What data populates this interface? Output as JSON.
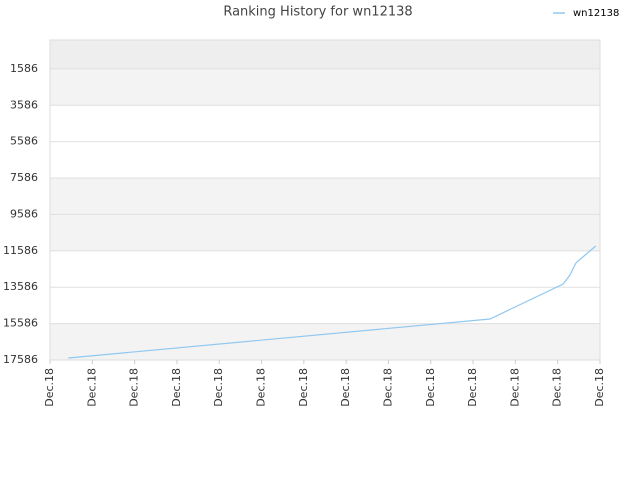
{
  "chart_data": {
    "type": "line",
    "title": "Ranking History for wn12138",
    "x": [
      0.43,
      10.4,
      12.13,
      12.29,
      12.43,
      12.65,
      12.9
    ],
    "series": [
      {
        "name": "wn12138",
        "color": "#90c8f0",
        "values": [
          17476,
          15333,
          13409,
          12915,
          12255,
          11816,
          11321
        ]
      }
    ],
    "xlim": [
      0,
      13
    ],
    "xticks": [
      {
        "value": 0,
        "label": "Dec.18"
      },
      {
        "value": 1,
        "label": "Dec.18"
      },
      {
        "value": 2,
        "label": "Dec.18"
      },
      {
        "value": 3,
        "label": "Dec.18"
      },
      {
        "value": 4,
        "label": "Dec.18"
      },
      {
        "value": 5,
        "label": "Dec.18"
      },
      {
        "value": 6,
        "label": "Dec.18"
      },
      {
        "value": 7,
        "label": "Dec.18"
      },
      {
        "value": 8,
        "label": "Dec.18"
      },
      {
        "value": 9,
        "label": "Dec.18"
      },
      {
        "value": 10,
        "label": "Dec.18"
      },
      {
        "value": 11,
        "label": "Dec.18"
      },
      {
        "value": 12,
        "label": "Dec.18"
      },
      {
        "value": 13,
        "label": "Dec.18"
      }
    ],
    "ylim": [
      0,
      17586
    ],
    "y_reversed": true,
    "yticks": [
      1586,
      3586,
      5586,
      7586,
      9586,
      11586,
      13586,
      15586,
      17586
    ],
    "grid": true,
    "legend": "top-right"
  }
}
